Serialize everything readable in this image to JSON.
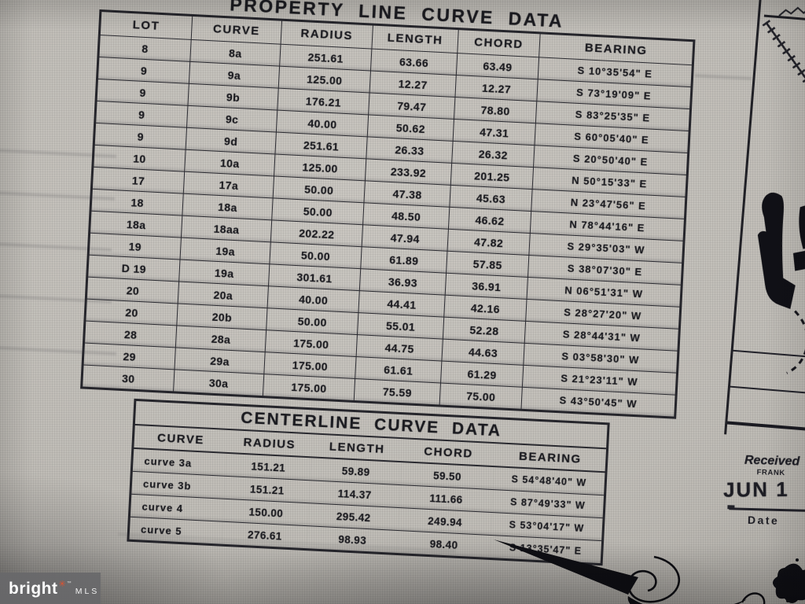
{
  "property_table": {
    "title": "PROPERTY LINE CURVE DATA",
    "headers": [
      "LOT",
      "CURVE",
      "RADIUS",
      "LENGTH",
      "CHORD",
      "BEARING"
    ],
    "rows": [
      [
        "8",
        "8a",
        "251.61",
        "63.66",
        "63.49",
        "S 10°35'54\" E"
      ],
      [
        "9",
        "9a",
        "125.00",
        "12.27",
        "12.27",
        "S 73°19'09\" E"
      ],
      [
        "9",
        "9b",
        "176.21",
        "79.47",
        "78.80",
        "S 83°25'35\" E"
      ],
      [
        "9",
        "9c",
        "40.00",
        "50.62",
        "47.31",
        "S 60°05'40\" E"
      ],
      [
        "9",
        "9d",
        "251.61",
        "26.33",
        "26.32",
        "S 20°50'40\" E"
      ],
      [
        "10",
        "10a",
        "125.00",
        "233.92",
        "201.25",
        "N 50°15'33\" E"
      ],
      [
        "17",
        "17a",
        "50.00",
        "47.38",
        "45.63",
        "N 23°47'56\" E"
      ],
      [
        "18",
        "18a",
        "50.00",
        "48.50",
        "46.62",
        "N 78°44'16\" E"
      ],
      [
        "18a",
        "18aa",
        "202.22",
        "47.94",
        "47.82",
        "S 29°35'03\" W"
      ],
      [
        "19",
        "19a",
        "50.00",
        "61.89",
        "57.85",
        "S 38°07'30\" E"
      ],
      [
        "D 19",
        "19a",
        "301.61",
        "36.93",
        "36.91",
        "N 06°51'31\" W"
      ],
      [
        "20",
        "20a",
        "40.00",
        "44.41",
        "42.16",
        "S 28°27'20\" W"
      ],
      [
        "20",
        "20b",
        "50.00",
        "55.01",
        "52.28",
        "S 28°44'31\" W"
      ],
      [
        "28",
        "28a",
        "175.00",
        "44.75",
        "44.63",
        "S 03°58'30\" W"
      ],
      [
        "29",
        "29a",
        "175.00",
        "61.61",
        "61.29",
        "S 21°23'11\" W"
      ],
      [
        "30",
        "30a",
        "175.00",
        "75.59",
        "75.00",
        "S 43°50'45\" W"
      ]
    ]
  },
  "centerline_table": {
    "title": "CENTERLINE CURVE DATA",
    "headers": [
      "CURVE",
      "RADIUS",
      "LENGTH",
      "CHORD",
      "BEARING"
    ],
    "rows": [
      [
        "curve 3a",
        "151.21",
        "59.89",
        "59.50",
        "S 54°48'40\" W"
      ],
      [
        "curve 3b",
        "151.21",
        "114.37",
        "111.66",
        "S 87°49'33\" W"
      ],
      [
        "curve 4",
        "150.00",
        "295.42",
        "249.94",
        "S 53°04'17\" W"
      ],
      [
        "curve 5",
        "276.61",
        "98.93",
        "98.40",
        "S 13°35'47\" E"
      ]
    ]
  },
  "stamp": {
    "received_label": "Received",
    "agency_label": "FRANK",
    "date_stamp": "JUN 1",
    "date_label": "Date"
  },
  "watermark": {
    "brand": "bright",
    "trademark": "™",
    "suffix": "MLS"
  },
  "colors": {
    "paper_gray": "#c3c0ba",
    "ink": "#1b1b20",
    "watermark_bg": "#6a6a6c",
    "accent_star": "#e0512e"
  }
}
